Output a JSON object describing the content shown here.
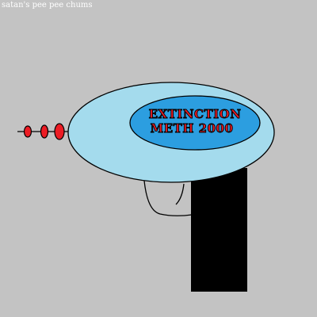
{
  "caption": "satan's pee pee chums",
  "badge": {
    "line1": "EXTINCTION",
    "line2": "METH 2000"
  },
  "colors": {
    "background": "#c3c3c3",
    "body_fill": "#a4dbed",
    "badge_fill": "#2c9ee0",
    "badge_text": "#ec1c24",
    "handle_fill": "#000000",
    "emitter_fill": "#ec1c24",
    "outline": "#000000",
    "caption_text": "#ffffff"
  }
}
